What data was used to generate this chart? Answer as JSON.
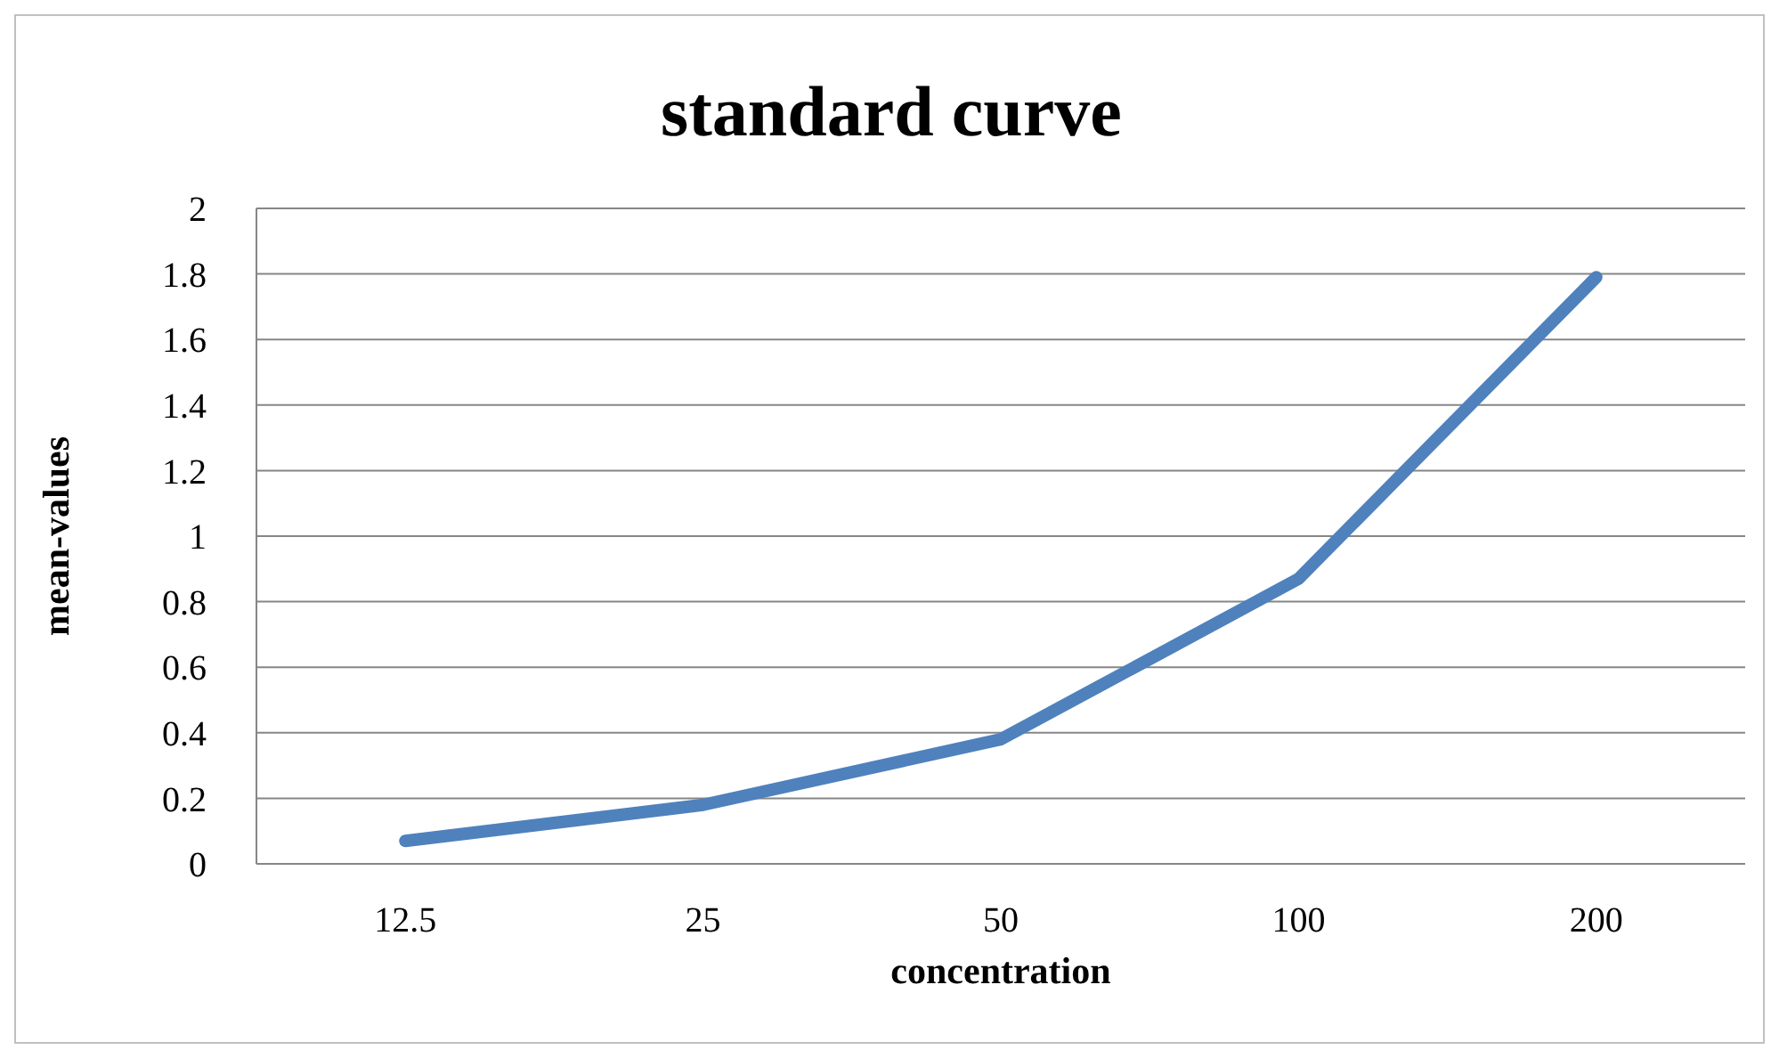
{
  "chart_data": {
    "type": "line",
    "title": "standard curve",
    "xlabel": "concentration",
    "ylabel": "mean-values",
    "categories": [
      "12.5",
      "25",
      "50",
      "100",
      "200"
    ],
    "series": [
      {
        "color": "#4f81bd",
        "values": [
          0.07,
          0.18,
          0.38,
          0.87,
          1.79
        ]
      }
    ],
    "ylim": [
      0,
      2
    ],
    "yticks": [
      0,
      0.2,
      0.4,
      0.6,
      0.8,
      1,
      1.2,
      1.4,
      1.6,
      1.8,
      2
    ],
    "grid": "y",
    "marker": "none",
    "line_style": "solid"
  }
}
